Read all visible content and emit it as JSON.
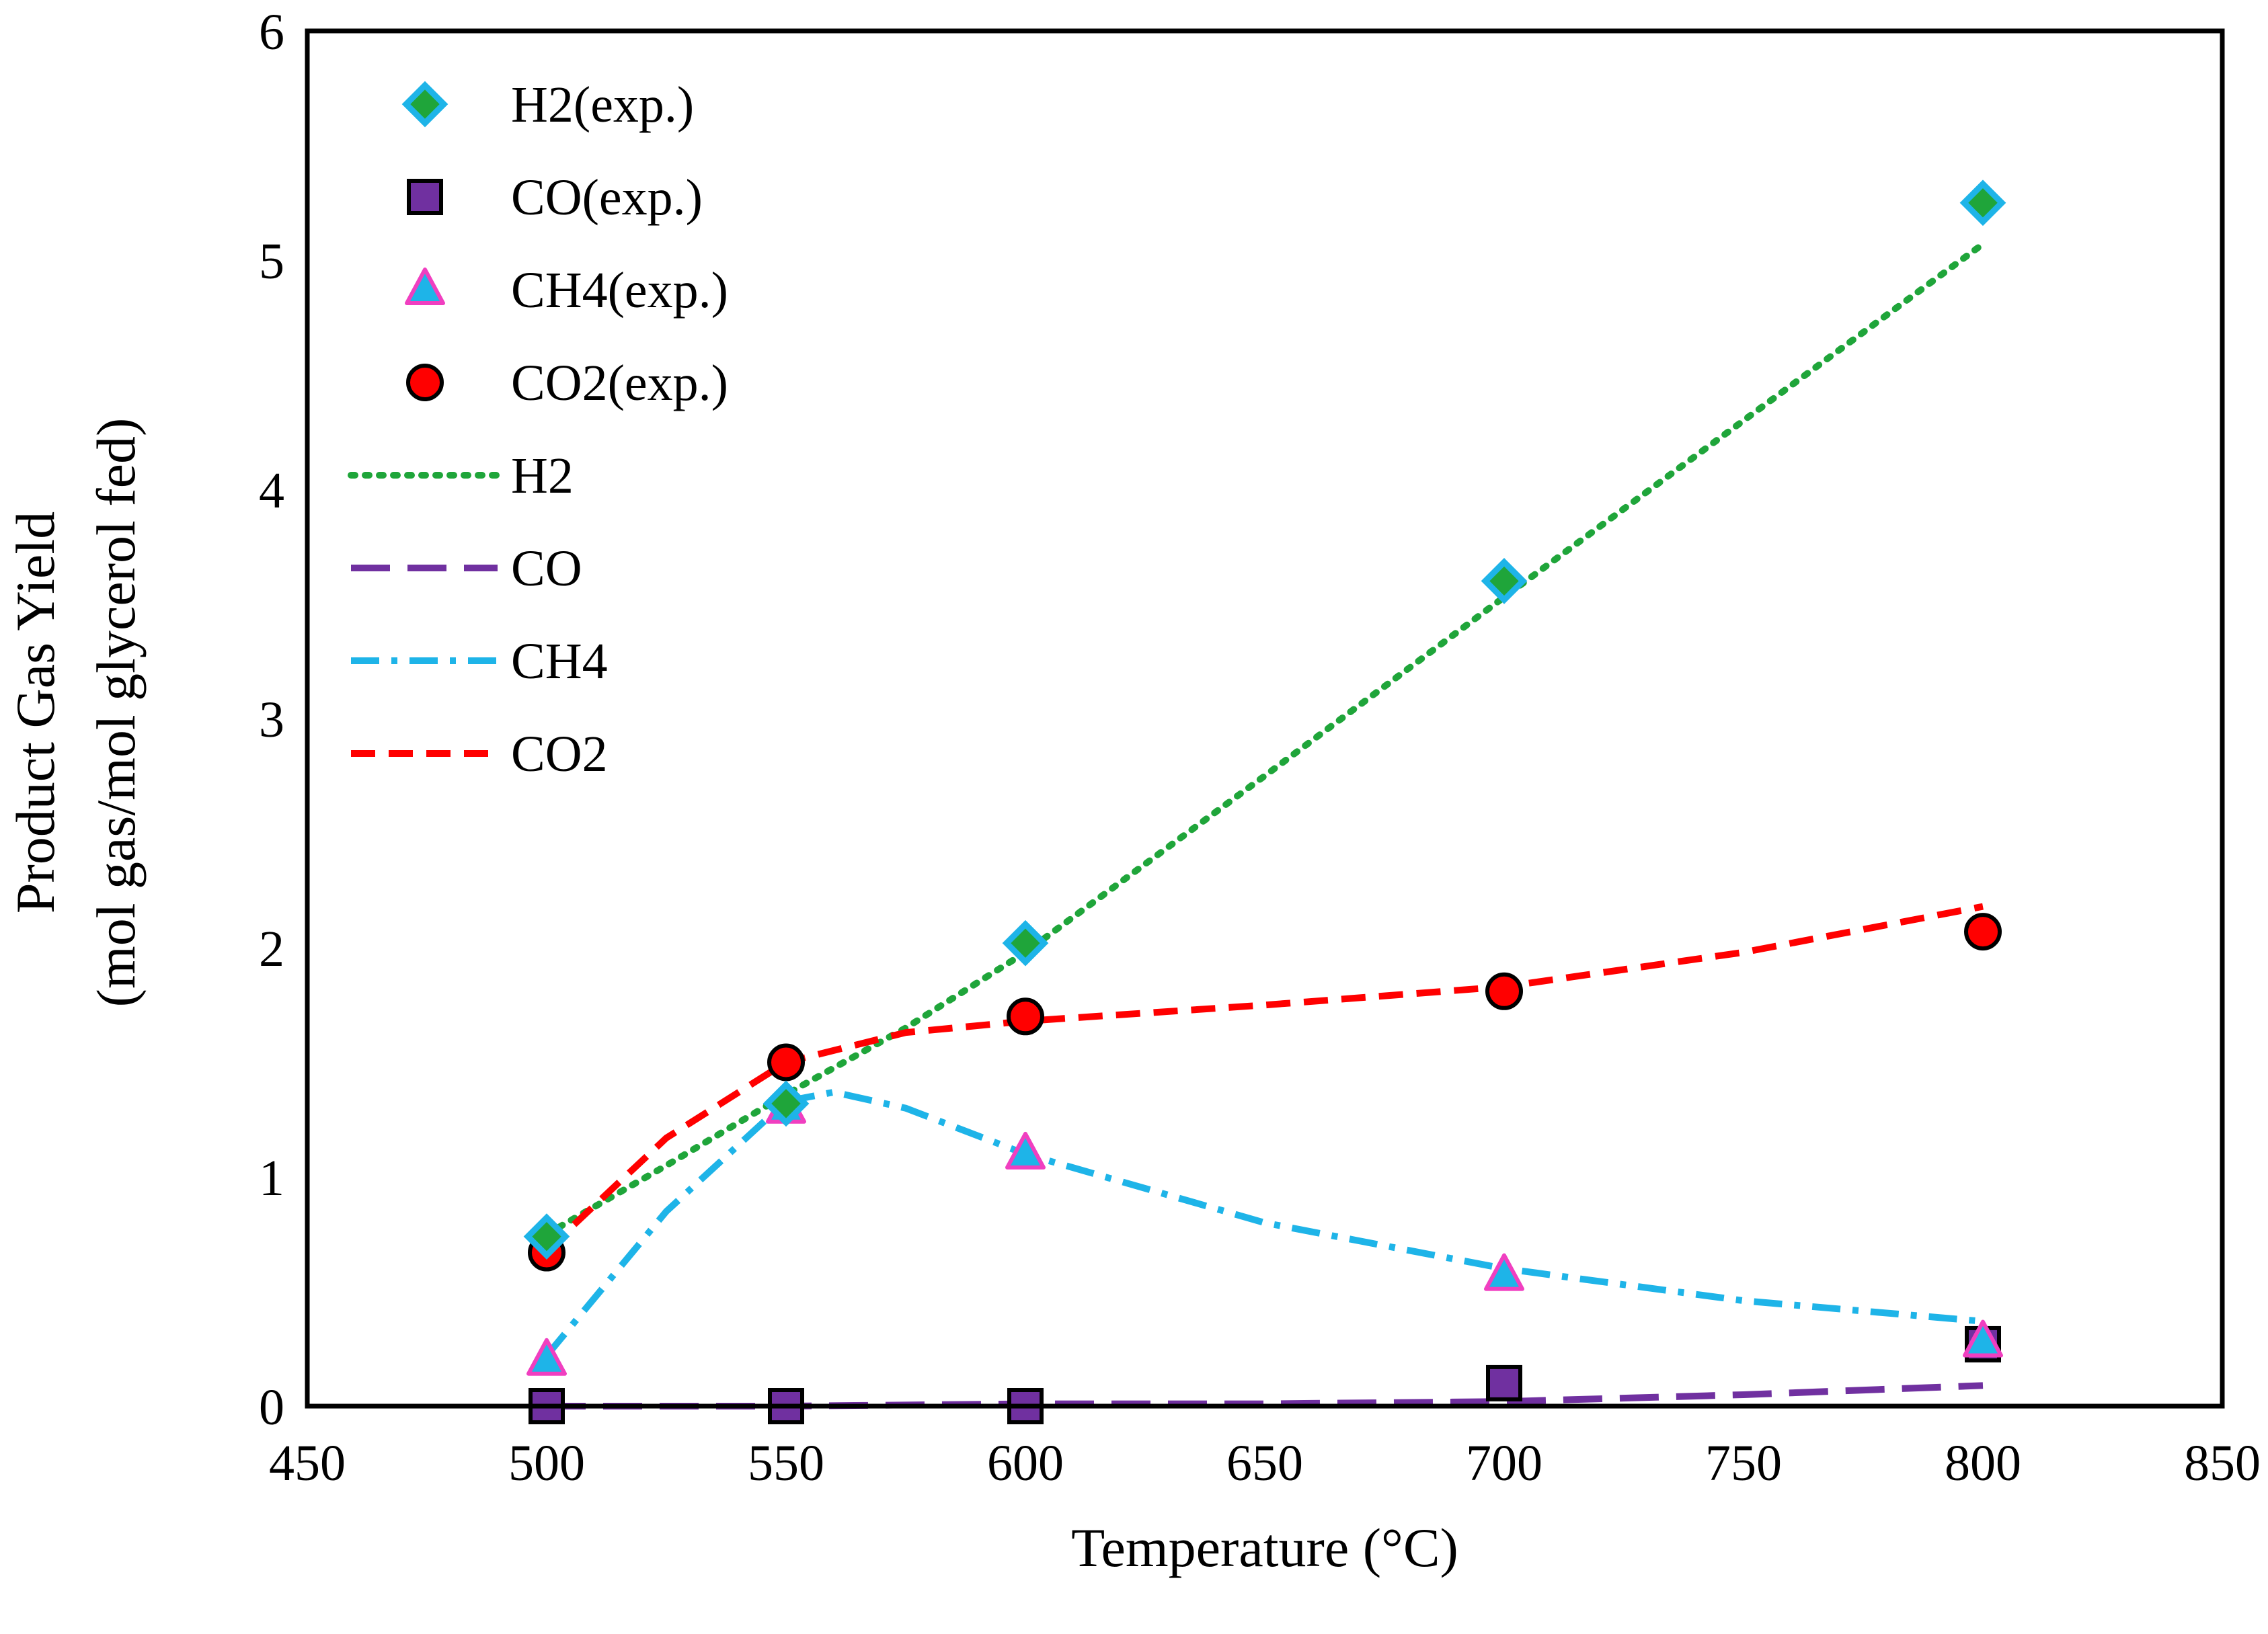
{
  "chart_data": {
    "type": "scatter",
    "title": "",
    "xlabel": "Temperature (°C)",
    "ylabel_line1": "Product Gas Yield",
    "ylabel_line2": "(mol gas/mol glycerol fed)",
    "xlim": [
      450,
      850
    ],
    "ylim": [
      0,
      6
    ],
    "xticks": [
      "450",
      "500",
      "550",
      "600",
      "650",
      "700",
      "750",
      "800",
      "850"
    ],
    "yticks": [
      "0",
      "1",
      "2",
      "3",
      "4",
      "5",
      "6"
    ],
    "grid": false,
    "legend_position": "top-left",
    "series": [
      {
        "id": "h2-exp",
        "name": "H2(exp.)",
        "kind": "marker",
        "marker": "diamond",
        "fill": "#1FA53A",
        "stroke": "#1EB4E8",
        "x": [
          500,
          550,
          600,
          700,
          800
        ],
        "y": [
          0.74,
          1.32,
          2.02,
          3.6,
          5.25
        ]
      },
      {
        "id": "co-exp",
        "name": "CO(exp.)",
        "kind": "marker",
        "marker": "square",
        "fill": "#7030A0",
        "stroke": "#000000",
        "x": [
          500,
          550,
          600,
          700,
          800
        ],
        "y": [
          0.0,
          0.0,
          0.0,
          0.1,
          0.27
        ]
      },
      {
        "id": "ch4-exp",
        "name": "CH4(exp.)",
        "kind": "marker",
        "marker": "triangle",
        "fill": "#1EB4E8",
        "stroke": "#F03FC0",
        "x": [
          500,
          550,
          600,
          700,
          800
        ],
        "y": [
          0.2,
          1.3,
          1.1,
          0.57,
          0.28
        ]
      },
      {
        "id": "co2-exp",
        "name": "CO2(exp.)",
        "kind": "marker",
        "marker": "circle",
        "fill": "#FF0000",
        "stroke": "#000000",
        "x": [
          500,
          550,
          600,
          700,
          800
        ],
        "y": [
          0.67,
          1.5,
          1.7,
          1.81,
          2.07
        ]
      },
      {
        "id": "h2-model",
        "name": "H2",
        "kind": "line",
        "stroke": "#1FA53A",
        "dash": "dot",
        "x": [
          500,
          525,
          550,
          575,
          600,
          650,
          700,
          750,
          800
        ],
        "y": [
          0.75,
          1.05,
          1.36,
          1.65,
          1.98,
          2.75,
          3.53,
          4.3,
          5.07
        ]
      },
      {
        "id": "co-model",
        "name": "CO",
        "kind": "line",
        "stroke": "#7030A0",
        "dash": "longdash",
        "x": [
          500,
          550,
          600,
          650,
          700,
          750,
          800
        ],
        "y": [
          0.0,
          0.0,
          0.01,
          0.01,
          0.02,
          0.05,
          0.09
        ]
      },
      {
        "id": "ch4-model",
        "name": "CH4",
        "kind": "line",
        "stroke": "#1EB4E8",
        "dash": "dashdot",
        "x": [
          500,
          525,
          550,
          560,
          575,
          600,
          650,
          700,
          750,
          800
        ],
        "y": [
          0.22,
          0.85,
          1.33,
          1.37,
          1.3,
          1.1,
          0.8,
          0.6,
          0.46,
          0.37
        ]
      },
      {
        "id": "co2-model",
        "name": "CO2",
        "kind": "line",
        "stroke": "#FF0000",
        "dash": "dash",
        "x": [
          500,
          525,
          550,
          575,
          600,
          650,
          700,
          750,
          800
        ],
        "y": [
          0.68,
          1.17,
          1.5,
          1.63,
          1.68,
          1.75,
          1.83,
          1.98,
          2.18
        ]
      }
    ]
  }
}
